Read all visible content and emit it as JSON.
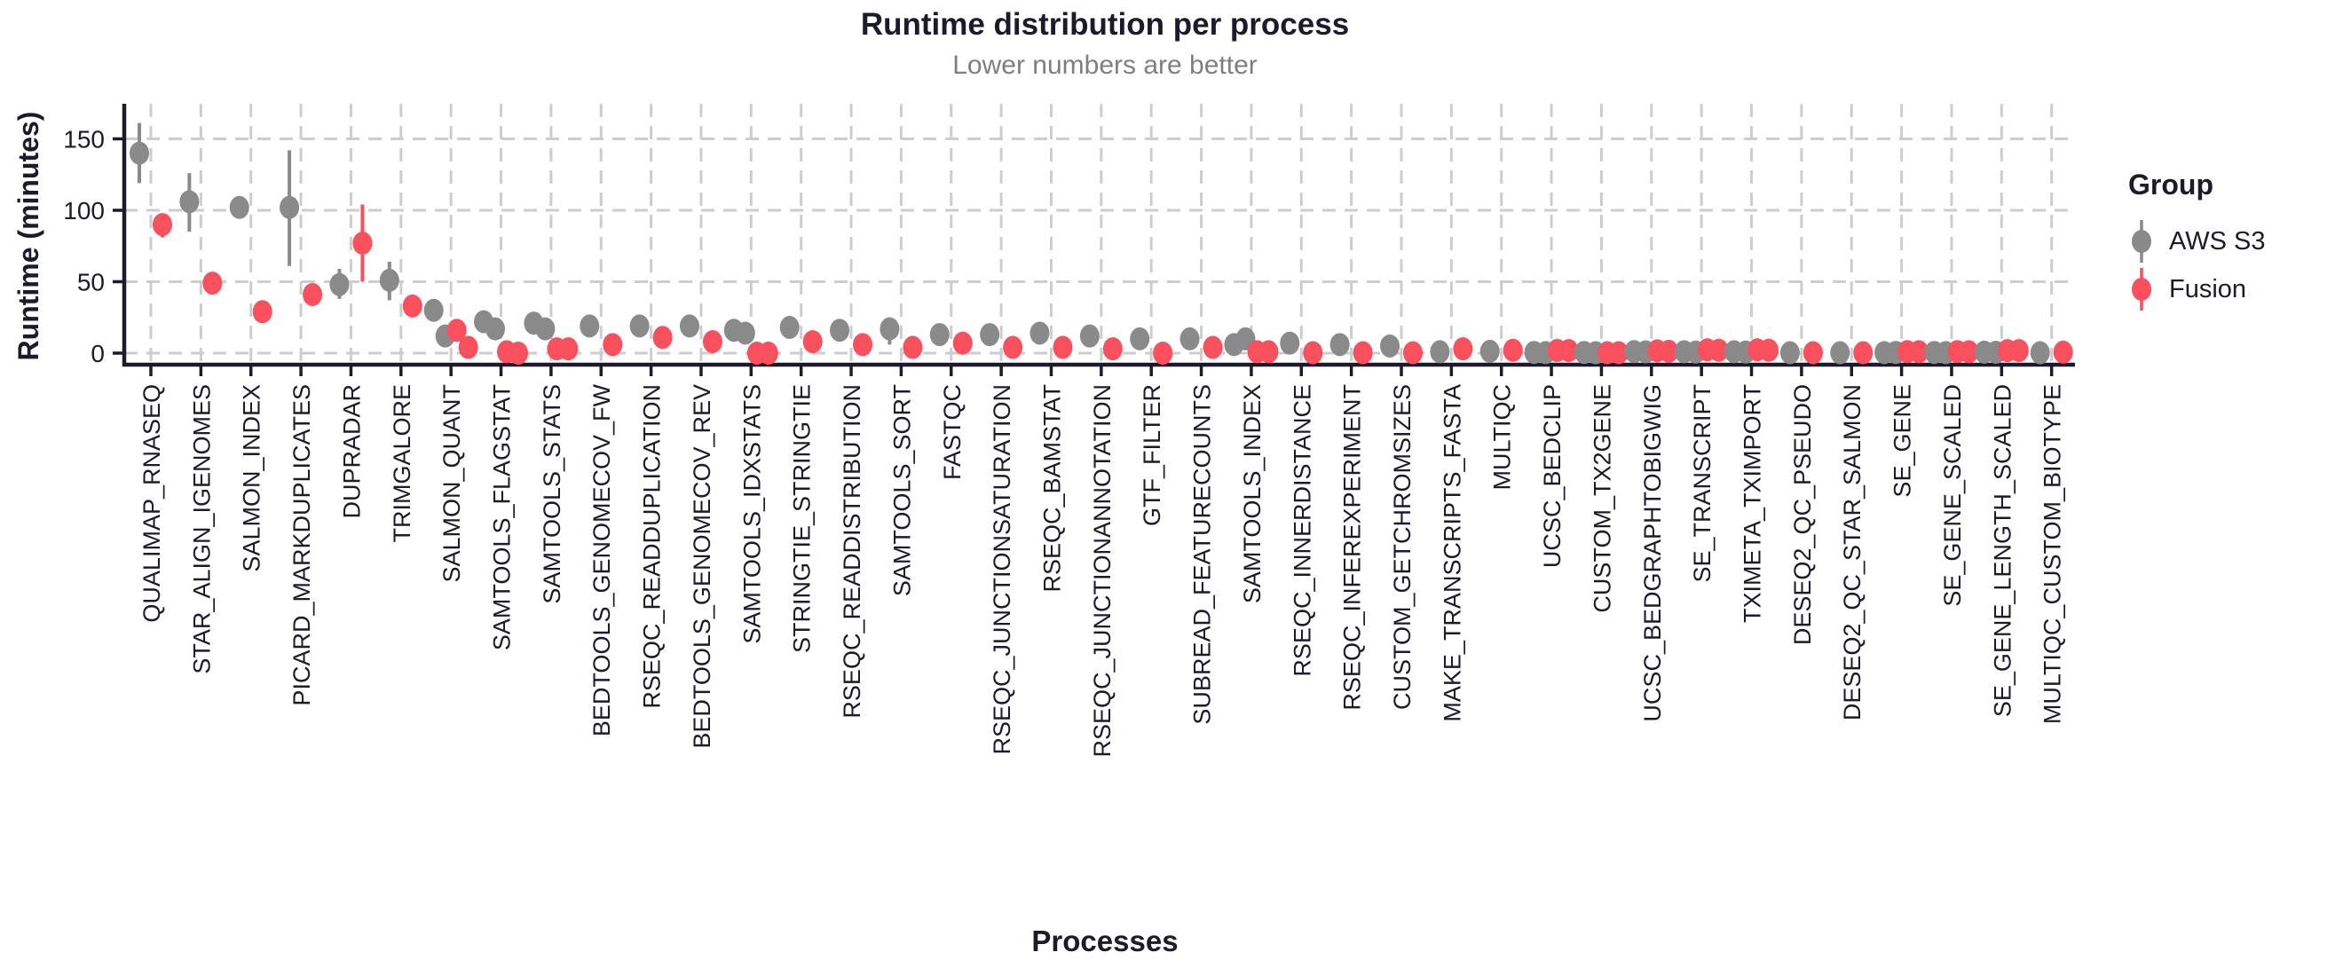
{
  "chart_data": {
    "type": "pointrange-dotplot",
    "title": "Runtime distribution per process",
    "subtitle": "Lower numbers are better",
    "xlabel": "Processes",
    "ylabel": "Runtime (minutes)",
    "legend_title": "Group",
    "y_ticks": [
      0,
      50,
      100,
      150
    ],
    "ylim": [
      -8,
      173
    ],
    "grid": "dashed",
    "legend_position": "right",
    "groups": [
      {
        "key": "aws_s3",
        "label": "AWS S3",
        "color": "#8a8a8a"
      },
      {
        "key": "fusion",
        "label": "Fusion",
        "color": "#f8505c"
      }
    ],
    "processes": [
      {
        "name": "QUALIMAP_RNASEQ",
        "aws_s3": {
          "points": [
            140
          ],
          "range": [
            119,
            161
          ]
        },
        "fusion": {
          "points": [
            90
          ],
          "range": [
            81,
            97
          ]
        }
      },
      {
        "name": "STAR_ALIGN_IGENOMES",
        "aws_s3": {
          "points": [
            106
          ],
          "range": [
            85,
            126
          ]
        },
        "fusion": {
          "points": [
            49
          ]
        }
      },
      {
        "name": "SALMON_INDEX",
        "aws_s3": {
          "points": [
            102
          ]
        },
        "fusion": {
          "points": [
            29
          ]
        }
      },
      {
        "name": "PICARD_MARKDUPLICATES",
        "aws_s3": {
          "points": [
            102
          ],
          "range": [
            61,
            142
          ]
        },
        "fusion": {
          "points": [
            41
          ]
        }
      },
      {
        "name": "DUPRADAR",
        "aws_s3": {
          "points": [
            48
          ],
          "range": [
            38,
            59
          ]
        },
        "fusion": {
          "points": [
            77
          ],
          "range": [
            50,
            104
          ]
        }
      },
      {
        "name": "TRIMGALORE",
        "aws_s3": {
          "points": [
            51
          ],
          "range": [
            37,
            64
          ]
        },
        "fusion": {
          "points": [
            33
          ]
        }
      },
      {
        "name": "SALMON_QUANT",
        "aws_s3": {
          "points": [
            30,
            12
          ]
        },
        "fusion": {
          "points": [
            16,
            4
          ]
        }
      },
      {
        "name": "SAMTOOLS_FLAGSTAT",
        "aws_s3": {
          "points": [
            22,
            17
          ]
        },
        "fusion": {
          "points": [
            1,
            0
          ]
        }
      },
      {
        "name": "SAMTOOLS_STATS",
        "aws_s3": {
          "points": [
            21,
            17
          ]
        },
        "fusion": {
          "points": [
            3,
            3
          ]
        }
      },
      {
        "name": "BEDTOOLS_GENOMECOV_FW",
        "aws_s3": {
          "points": [
            19
          ]
        },
        "fusion": {
          "points": [
            6
          ]
        }
      },
      {
        "name": "RSEQC_READDUPLICATION",
        "aws_s3": {
          "points": [
            19
          ]
        },
        "fusion": {
          "points": [
            11
          ]
        }
      },
      {
        "name": "BEDTOOLS_GENOMECOV_REV",
        "aws_s3": {
          "points": [
            19
          ]
        },
        "fusion": {
          "points": [
            8
          ]
        }
      },
      {
        "name": "SAMTOOLS_IDXSTATS",
        "aws_s3": {
          "points": [
            16,
            14
          ]
        },
        "fusion": {
          "points": [
            0,
            0
          ]
        }
      },
      {
        "name": "STRINGTIE_STRINGTIE",
        "aws_s3": {
          "points": [
            18
          ]
        },
        "fusion": {
          "points": [
            8
          ]
        }
      },
      {
        "name": "RSEQC_READDISTRIBUTION",
        "aws_s3": {
          "points": [
            16
          ]
        },
        "fusion": {
          "points": [
            6
          ]
        }
      },
      {
        "name": "SAMTOOLS_SORT",
        "aws_s3": {
          "points": [
            17
          ],
          "range": [
            6,
            25
          ]
        },
        "fusion": {
          "points": [
            4
          ]
        }
      },
      {
        "name": "FASTQC",
        "aws_s3": {
          "points": [
            13
          ]
        },
        "fusion": {
          "points": [
            7
          ]
        }
      },
      {
        "name": "RSEQC_JUNCTIONSATURATION",
        "aws_s3": {
          "points": [
            13
          ]
        },
        "fusion": {
          "points": [
            4
          ]
        }
      },
      {
        "name": "RSEQC_BAMSTAT",
        "aws_s3": {
          "points": [
            14
          ]
        },
        "fusion": {
          "points": [
            4
          ]
        }
      },
      {
        "name": "RSEQC_JUNCTIONANNOTATION",
        "aws_s3": {
          "points": [
            12
          ]
        },
        "fusion": {
          "points": [
            3
          ]
        }
      },
      {
        "name": "GTF_FILTER",
        "aws_s3": {
          "points": [
            10
          ]
        },
        "fusion": {
          "points": [
            0
          ]
        }
      },
      {
        "name": "SUBREAD_FEATURECOUNTS",
        "aws_s3": {
          "points": [
            10
          ]
        },
        "fusion": {
          "points": [
            4
          ]
        }
      },
      {
        "name": "SAMTOOLS_INDEX",
        "aws_s3": {
          "points": [
            6,
            10
          ]
        },
        "fusion": {
          "points": [
            1,
            1
          ]
        }
      },
      {
        "name": "RSEQC_INNERDISTANCE",
        "aws_s3": {
          "points": [
            7
          ]
        },
        "fusion": {
          "points": [
            0.3
          ]
        }
      },
      {
        "name": "RSEQC_INFEREXPERIMENT",
        "aws_s3": {
          "points": [
            6
          ]
        },
        "fusion": {
          "points": [
            0.3
          ]
        }
      },
      {
        "name": "CUSTOM_GETCHROMSIZES",
        "aws_s3": {
          "points": [
            5
          ]
        },
        "fusion": {
          "points": [
            0.3
          ]
        }
      },
      {
        "name": "MAKE_TRANSCRIPTS_FASTA",
        "aws_s3": {
          "points": [
            1
          ]
        },
        "fusion": {
          "points": [
            3
          ]
        }
      },
      {
        "name": "MULTIQC",
        "aws_s3": {
          "points": [
            1.3
          ]
        },
        "fusion": {
          "points": [
            2
          ]
        }
      },
      {
        "name": "UCSC_BEDCLIP",
        "aws_s3": {
          "points": [
            0.5,
            0.4
          ]
        },
        "fusion": {
          "points": [
            1.9,
            1.8
          ]
        }
      },
      {
        "name": "CUSTOM_TX2GENE",
        "aws_s3": {
          "points": [
            0.5,
            0.3
          ]
        },
        "fusion": {
          "points": [
            0.3,
            0.3
          ]
        }
      },
      {
        "name": "UCSC_BEDGRAPHTOBIGWIG",
        "aws_s3": {
          "points": [
            1.1,
            0.9
          ]
        },
        "fusion": {
          "points": [
            1.6,
            1.3
          ]
        }
      },
      {
        "name": "SE_TRANSCRIPT",
        "aws_s3": {
          "points": [
            1,
            0.8
          ]
        },
        "fusion": {
          "points": [
            2.3,
            2
          ]
        }
      },
      {
        "name": "TXIMETA_TXIMPORT",
        "aws_s3": {
          "points": [
            1,
            0.8
          ]
        },
        "fusion": {
          "points": [
            2.3,
            2
          ]
        }
      },
      {
        "name": "DESEQ2_QC_PSEUDO",
        "aws_s3": {
          "points": [
            0.3
          ]
        },
        "fusion": {
          "points": [
            0.3
          ]
        }
      },
      {
        "name": "DESEQ2_QC_STAR_SALMON",
        "aws_s3": {
          "points": [
            0.3
          ]
        },
        "fusion": {
          "points": [
            0.3
          ]
        }
      },
      {
        "name": "SE_GENE",
        "aws_s3": {
          "points": [
            0.4,
            0.5
          ]
        },
        "fusion": {
          "points": [
            1.1,
            1
          ]
        }
      },
      {
        "name": "SE_GENE_SCALED",
        "aws_s3": {
          "points": [
            0.5,
            0.4
          ]
        },
        "fusion": {
          "points": [
            1.1,
            1
          ]
        }
      },
      {
        "name": "SE_GENE_LENGTH_SCALED",
        "aws_s3": {
          "points": [
            0.7,
            0.6
          ]
        },
        "fusion": {
          "points": [
            1.8,
            1.8
          ]
        }
      },
      {
        "name": "MULTIQC_CUSTOM_BIOTYPE",
        "aws_s3": {
          "points": [
            0.3
          ]
        },
        "fusion": {
          "points": [
            0.7
          ]
        }
      }
    ]
  },
  "colors": {
    "text": "#1b1b2b",
    "subtitle": "#7f7f7f",
    "grid": "#cdcdcd",
    "axis": "#1b1b2b",
    "background": "#ffffff"
  }
}
